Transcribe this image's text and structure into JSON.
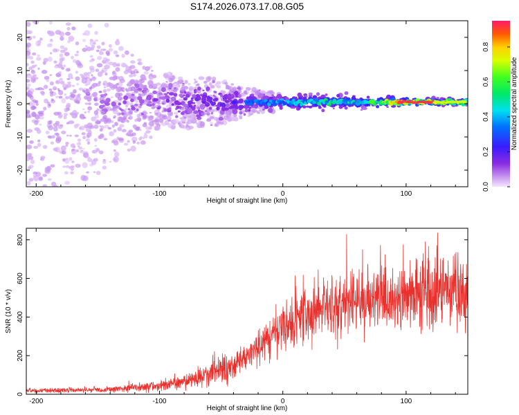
{
  "figure_title": "S174.2026.073.17.08.G05",
  "chart_data": [
    {
      "type": "heatmap",
      "panel": "top",
      "title": "S174.2026.073.17.08.G05",
      "xlabel": "Height of straight line (km)",
      "ylabel": "Frequency (Hz)",
      "xlim": [
        -208,
        150
      ],
      "ylim": [
        -25,
        25
      ],
      "xticks": [
        -200,
        -100,
        0,
        100
      ],
      "yticks": [
        -20,
        -10,
        0,
        10,
        20
      ],
      "colorbar": {
        "label": "Normalized spectral amplitude",
        "range": [
          0,
          0.95
        ],
        "ticks": [
          0.0,
          0.2,
          0.4,
          0.6,
          0.8
        ],
        "colormap": "rainbow (violet → blue → cyan → green → yellow → red)"
      },
      "signal_band": {
        "center_frequency_hz": 0.5,
        "note": "Diffuse low-amplitude scatter below ~ -30 km; narrow coherent tone near 0 Hz above ~ -25 km with amplitude rising toward 0.9 near 95-120 km",
        "amplitude_profile": [
          {
            "x": -200,
            "peak_amplitude": 0.12,
            "spread_hz": 25
          },
          {
            "x": -150,
            "peak_amplitude": 0.14,
            "spread_hz": 20
          },
          {
            "x": -100,
            "peak_amplitude": 0.22,
            "spread_hz": 8
          },
          {
            "x": -60,
            "peak_amplitude": 0.3,
            "spread_hz": 7
          },
          {
            "x": -30,
            "peak_amplitude": 0.35,
            "spread_hz": 4
          },
          {
            "x": 0,
            "peak_amplitude": 0.45,
            "spread_hz": 2
          },
          {
            "x": 30,
            "peak_amplitude": 0.6,
            "spread_hz": 2
          },
          {
            "x": 60,
            "peak_amplitude": 0.55,
            "spread_hz": 2
          },
          {
            "x": 100,
            "peak_amplitude": 0.92,
            "spread_hz": 1
          },
          {
            "x": 150,
            "peak_amplitude": 0.6,
            "spread_hz": 1
          }
        ]
      }
    },
    {
      "type": "line",
      "panel": "bottom",
      "xlabel": "Height of straight line (km)",
      "ylabel": "SNR (10 * v/v)",
      "xlim": [
        -208,
        150
      ],
      "ylim": [
        0,
        860
      ],
      "xticks": [
        -200,
        -100,
        0,
        100
      ],
      "yticks": [
        0,
        200,
        400,
        600,
        800
      ],
      "series": [
        {
          "name": "SNR",
          "color": "#e8302c",
          "x": [
            -208,
            -180,
            -160,
            -140,
            -120,
            -100,
            -80,
            -60,
            -40,
            -20,
            0,
            20,
            40,
            60,
            80,
            100,
            120,
            150
          ],
          "values": [
            18,
            20,
            22,
            25,
            35,
            45,
            65,
            100,
            150,
            240,
            340,
            420,
            460,
            480,
            500,
            510,
            520,
            540
          ]
        }
      ]
    }
  ]
}
